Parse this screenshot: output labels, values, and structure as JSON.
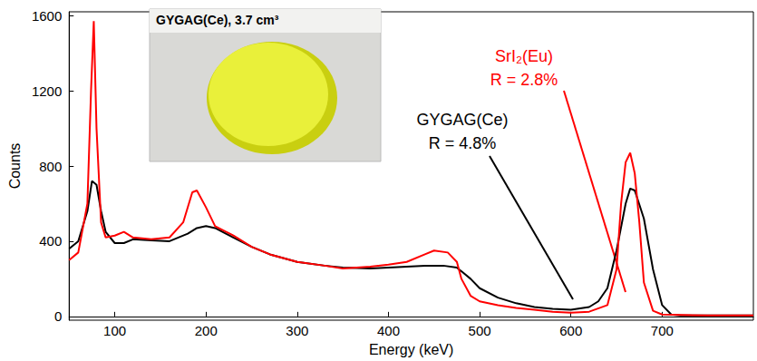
{
  "chart_data": {
    "type": "line",
    "x_label": "Energy (keV)",
    "y_label": "Counts",
    "xlim": [
      50,
      800
    ],
    "xticks": [
      100,
      200,
      300,
      400,
      500,
      600,
      700
    ],
    "ylim": [
      -20,
      1620
    ],
    "yticks": [
      0,
      400,
      800,
      1200,
      1600
    ],
    "grid": false,
    "series": [
      {
        "name": "GYGAG(Ce)",
        "color": "#000000",
        "x": [
          50,
          60,
          70,
          75,
          80,
          85,
          90,
          100,
          110,
          120,
          140,
          160,
          180,
          190,
          200,
          210,
          230,
          250,
          270,
          300,
          330,
          350,
          380,
          400,
          420,
          440,
          460,
          475,
          490,
          500,
          520,
          540,
          560,
          580,
          600,
          620,
          630,
          640,
          650,
          660,
          665,
          670,
          680,
          690,
          700,
          710,
          720,
          750,
          800
        ],
        "values": [
          360,
          400,
          560,
          720,
          700,
          560,
          450,
          390,
          390,
          410,
          405,
          400,
          440,
          470,
          480,
          470,
          420,
          370,
          330,
          290,
          270,
          260,
          255,
          260,
          265,
          270,
          270,
          260,
          200,
          150,
          100,
          70,
          50,
          40,
          35,
          50,
          80,
          150,
          350,
          600,
          680,
          670,
          520,
          250,
          60,
          10,
          5,
          5,
          5
        ]
      },
      {
        "name": "SrI₂(Eu)",
        "color": "#ff0000",
        "x": [
          50,
          60,
          70,
          74,
          77,
          80,
          85,
          90,
          100,
          110,
          120,
          140,
          160,
          175,
          185,
          190,
          200,
          210,
          230,
          250,
          270,
          300,
          330,
          350,
          380,
          400,
          420,
          440,
          450,
          465,
          475,
          480,
          490,
          500,
          520,
          540,
          560,
          580,
          600,
          620,
          640,
          650,
          655,
          660,
          665,
          670,
          675,
          680,
          690,
          700,
          750,
          800
        ],
        "values": [
          300,
          340,
          600,
          1200,
          1570,
          1000,
          500,
          420,
          430,
          450,
          420,
          410,
          420,
          500,
          660,
          670,
          580,
          480,
          430,
          370,
          330,
          290,
          270,
          255,
          265,
          275,
          290,
          330,
          350,
          340,
          290,
          200,
          110,
          80,
          60,
          45,
          35,
          25,
          20,
          25,
          60,
          250,
          600,
          820,
          870,
          760,
          500,
          180,
          30,
          10,
          5,
          5
        ]
      }
    ],
    "annotations": [
      {
        "text": "SrI₂(Eu)",
        "color": "#ff0000"
      },
      {
        "text": "R = 2.8%",
        "color": "#ff0000"
      },
      {
        "text": "GYGAG(Ce)",
        "color": "#000000"
      },
      {
        "text": "R = 4.8%",
        "color": "#000000"
      },
      {
        "text": "GYGAG(Ce), 3.7 cm³",
        "color": "#000000"
      }
    ]
  }
}
